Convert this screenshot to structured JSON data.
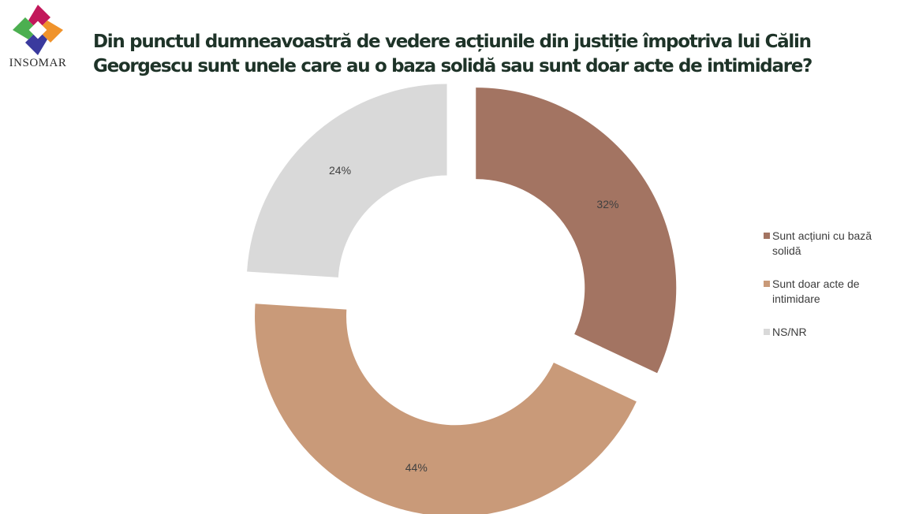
{
  "logo": {
    "text": "INSOMAR",
    "colors": [
      "#c2185b",
      "#f0932b",
      "#3a3a9e",
      "#4caf50"
    ]
  },
  "title": "Din punctul dumneavoastră de vedere acțiunile din justiție împotriva lui Călin Georgescu sunt unele care au o baza solidă sau sunt doar acte de intimidare?",
  "chart_data": {
    "type": "pie",
    "style": "donut-exploded",
    "title": "Din punctul dumneavoastră de vedere acțiunile din justiție împotriva lui Călin Georgescu sunt unele care au o baza solidă sau sunt doar acte de intimidare?",
    "categories": [
      "Sunt acțiuni cu bază solidă",
      "Sunt doar acte de intimidare",
      "NS/NR"
    ],
    "values": [
      32,
      44,
      24
    ],
    "labels": [
      "32%",
      "44%",
      "24%"
    ],
    "colors": [
      "#a37462",
      "#c99a79",
      "#d9d9d9"
    ],
    "label_color": "#404040",
    "legend_position": "right"
  }
}
